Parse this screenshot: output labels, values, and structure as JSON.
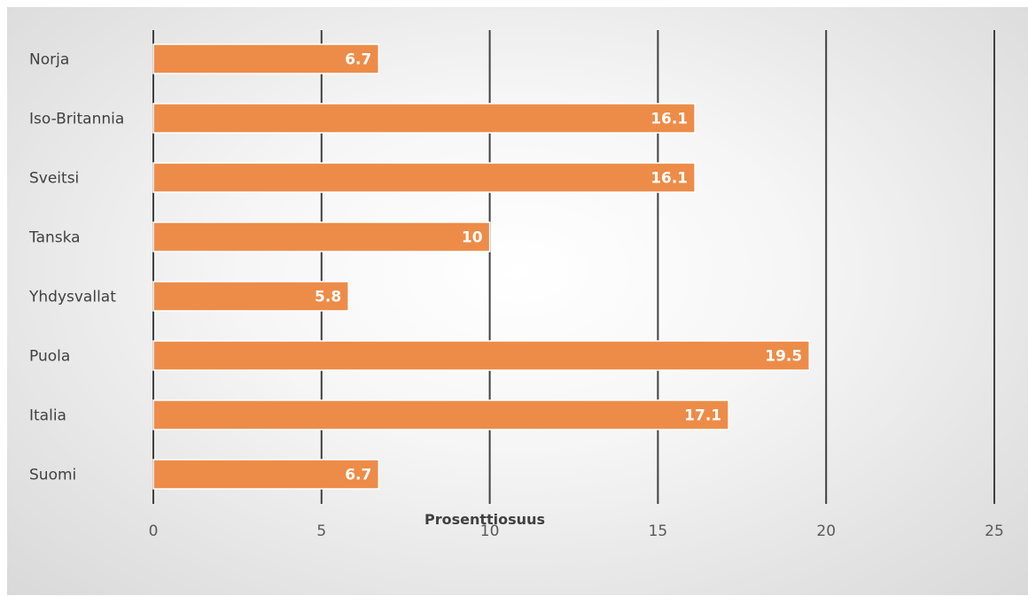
{
  "chart_data": {
    "type": "bar",
    "orientation": "horizontal",
    "categories": [
      "Norja",
      "Iso-Britannia",
      "Sveitsi",
      "Tanska",
      "Yhdysvallat",
      "Puola",
      "Italia",
      "Suomi"
    ],
    "values": [
      6.7,
      16.1,
      16.1,
      10,
      5.8,
      19.5,
      17.1,
      6.7
    ],
    "title": "",
    "xlabel": "Prosenttiosuus",
    "ylabel": "",
    "xlim": [
      0,
      25
    ],
    "x_ticks": [
      0,
      5,
      10,
      15,
      20,
      25
    ],
    "grid": true,
    "data_labels": true,
    "colors": {
      "bar": "#ed8c48",
      "bar_border": "#ffffff",
      "gridline": "#404040",
      "data_label": "#ffffff"
    }
  }
}
